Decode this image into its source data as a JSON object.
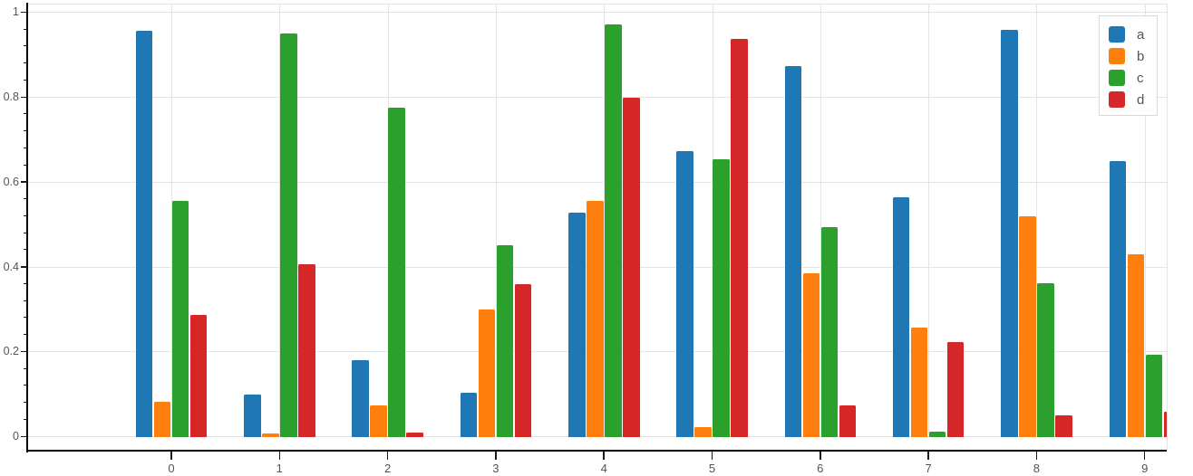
{
  "chart_data": {
    "type": "bar",
    "title": "",
    "xlabel": "",
    "ylabel": "",
    "categories": [
      "0",
      "1",
      "2",
      "3",
      "4",
      "5",
      "6",
      "7",
      "8",
      "9"
    ],
    "series": [
      {
        "name": "a",
        "color": "#1f77b4",
        "values": [
          0.955,
          0.098,
          0.179,
          0.103,
          0.527,
          0.672,
          0.872,
          0.564,
          0.958,
          0.649
        ]
      },
      {
        "name": "b",
        "color": "#ff7f0e",
        "values": [
          0.082,
          0.006,
          0.073,
          0.298,
          0.554,
          0.021,
          0.385,
          0.257,
          0.518,
          0.43
        ]
      },
      {
        "name": "c",
        "color": "#2ca02c",
        "values": [
          0.554,
          0.949,
          0.774,
          0.45,
          0.971,
          0.652,
          0.492,
          0.011,
          0.361,
          0.193
        ]
      },
      {
        "name": "d",
        "color": "#d62728",
        "values": [
          0.286,
          0.406,
          0.009,
          0.358,
          0.797,
          0.936,
          0.072,
          0.223,
          0.05,
          0.058
        ]
      }
    ],
    "ylim": [
      0,
      1
    ],
    "ytick_values": [
      0,
      0.2,
      0.4,
      0.6,
      0.8,
      1
    ],
    "ytick_labels": [
      "0",
      "0.2",
      "0.4",
      "0.6",
      "0.8",
      "1"
    ],
    "y_minor_tick_step": 0.04,
    "grid": true,
    "legend": {
      "position": "top-right",
      "entries": [
        "a",
        "b",
        "c",
        "d"
      ]
    },
    "axis_color": "#000000",
    "gridline_color": "#e5e5e5",
    "tick_label_color": "#545454"
  }
}
